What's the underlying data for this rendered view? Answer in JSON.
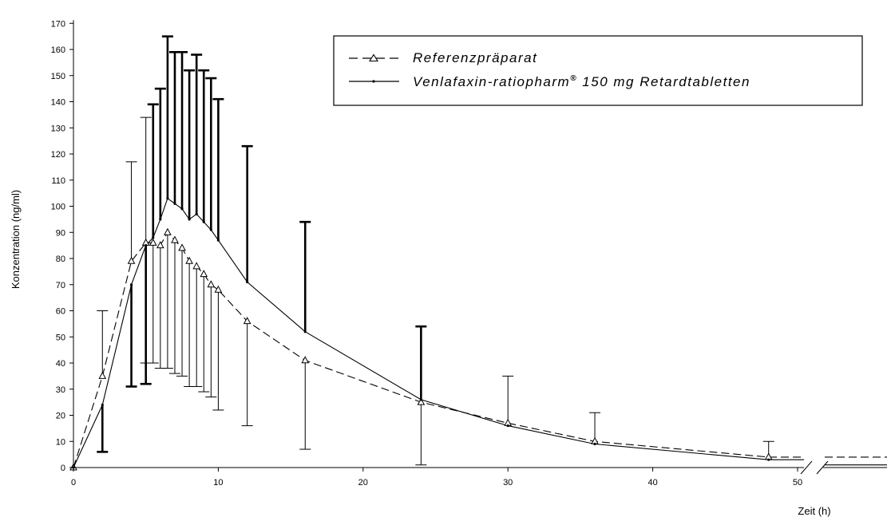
{
  "chart_data": {
    "type": "line",
    "xlabel": "Zeit (h)",
    "ylabel": "Konzentration (ng/ml)",
    "xlim": [
      0,
      58
    ],
    "ylim": [
      0,
      170
    ],
    "x_ticks": [
      0,
      10,
      20,
      30,
      40,
      50
    ],
    "y_ticks": [
      0,
      10,
      20,
      30,
      40,
      50,
      60,
      70,
      80,
      90,
      100,
      110,
      120,
      130,
      140,
      150,
      160,
      170
    ],
    "x_axis_break": "between 50 and 52",
    "grid": false,
    "legend_position": "top-right",
    "series": [
      {
        "name": "Referenzpräparat",
        "style": "dashed line with open triangle markers",
        "color": "#000000",
        "x": [
          0,
          2,
          4,
          5,
          5.5,
          6,
          6.5,
          7,
          7.5,
          8,
          8.5,
          9,
          9.5,
          10,
          12,
          16,
          24,
          30,
          36,
          48,
          58
        ],
        "y": [
          0,
          35,
          79,
          86,
          86,
          85,
          90,
          87,
          84,
          79,
          77,
          74,
          70,
          68,
          56,
          41,
          25,
          17,
          10,
          4,
          4
        ],
        "error_upper": [
          0,
          60,
          117,
          134,
          0,
          0,
          0,
          0,
          0,
          0,
          0,
          0,
          0,
          0,
          0,
          0,
          0,
          35,
          21,
          10,
          0
        ],
        "error_lower": [
          0,
          0,
          0,
          40,
          40,
          38,
          38,
          36,
          35,
          31,
          31,
          29,
          27,
          22,
          16,
          7,
          1,
          0,
          0,
          0,
          0
        ]
      },
      {
        "name": "Venlafaxin-ratiopharm® 150 mg Retardtabletten",
        "style": "solid line with small dot markers",
        "color": "#000000",
        "x": [
          0,
          2,
          4,
          5,
          5.5,
          6,
          6.5,
          7,
          7.5,
          8,
          8.5,
          9,
          9.5,
          10,
          12,
          16,
          24,
          30,
          36,
          48,
          58
        ],
        "y": [
          0,
          24,
          70,
          85,
          88,
          95,
          103,
          101,
          99,
          95,
          97,
          94,
          91,
          87,
          71,
          52,
          26,
          16,
          9,
          3,
          1
        ],
        "error_upper": [
          0,
          0,
          0,
          0,
          139,
          145,
          165,
          159,
          159,
          152,
          158,
          152,
          149,
          141,
          123,
          94,
          54,
          0,
          0,
          0,
          0
        ],
        "error_lower": [
          0,
          6,
          31,
          32,
          0,
          0,
          0,
          0,
          0,
          0,
          0,
          0,
          0,
          0,
          0,
          0,
          0,
          0,
          0,
          0,
          0
        ]
      }
    ]
  },
  "legend": {
    "ref_label": "Referenzpräparat",
    "test_label_main": "Venlafaxin-ratiopharm",
    "test_label_sup": "®",
    "test_label_rest": " 150 mg Retardtabletten"
  }
}
